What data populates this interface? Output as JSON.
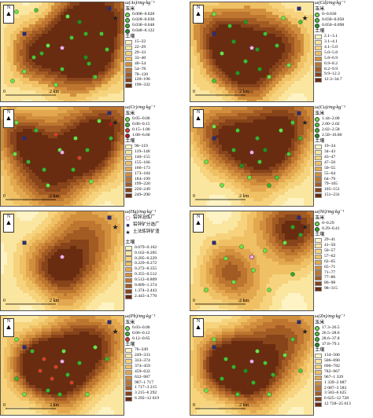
{
  "panels": [
    {
      "id": "as",
      "title": "ω(As)/mg·kg⁻¹",
      "section_pts": "玉米",
      "points": [
        {
          "label": "0.008~0.028",
          "color": "#6ee04b"
        },
        {
          "label": "0.028~0.038",
          "color": "#4cc63a"
        },
        {
          "label": "0.038~0.048",
          "color": "#39b12f"
        },
        {
          "label": "0.048~0.122",
          "color": "#1f8f22"
        }
      ],
      "section_soil": "土壤",
      "soil": [
        "15~22",
        "22~29",
        "29~33",
        "33~40",
        "40~54",
        "54~78",
        "78~120",
        "120~196",
        "196~332"
      ],
      "scale_zero": "0",
      "scale_label": "2 km"
    },
    {
      "id": "cd",
      "title": "ω(Cd)/mg·kg⁻¹",
      "section_pts": "玉米",
      "points": [
        {
          "label": "0~0.030",
          "color": "#6ee04b"
        },
        {
          "label": "0.030~0.050",
          "color": "#44c037"
        },
        {
          "label": "0.050~0.098",
          "color": "#249a25"
        }
      ],
      "section_soil": "土壤",
      "soil": [
        "2.1~3.1",
        "3.1~4.1",
        "4.1~5.0",
        "5.0~5.8",
        "5.8~6.9",
        "6.9~8.2",
        "8.2~9.9",
        "9.9~12.3",
        "12.3~34.7"
      ],
      "scale_zero": "0",
      "scale_label": "2 km"
    },
    {
      "id": "cr",
      "title": "ω(Cr)/mg·kg⁻¹",
      "section_pts": "玉米",
      "points": [
        {
          "label": "0.05~0.06",
          "color": "#6ee04b"
        },
        {
          "label": "0.06~0.15",
          "color": "#3bb531"
        },
        {
          "label": "0.15~1.00",
          "color": "#e23a2a"
        },
        {
          "label": "1.00~6.60",
          "color": "#c41414"
        }
      ],
      "section_soil": "土壤",
      "soil": [
        "90~119",
        "119~140",
        "140~155",
        "155~166",
        "166~173",
        "173~184",
        "184~199",
        "199~220",
        "220~249",
        "249~290"
      ],
      "scale_zero": "0",
      "scale_label": "2 km"
    },
    {
      "id": "cu",
      "title": "ω(Cu)/mg·kg⁻¹",
      "section_pts": "玉米",
      "points": [
        {
          "label": "1.44~2.00",
          "color": "#6ee04b"
        },
        {
          "label": "2.00~2.02",
          "color": "#4cc63a"
        },
        {
          "label": "2.02~2.58",
          "color": "#39b12f"
        },
        {
          "label": "2.58~16.00",
          "color": "#1f8f22"
        }
      ],
      "section_soil": "土壤",
      "soil": [
        "19~34",
        "34~43",
        "43~47",
        "47~50",
        "50~55",
        "55~64",
        "64~79",
        "79~105",
        "105~151",
        "151~231"
      ],
      "scale_zero": "0",
      "scale_label": "2 km"
    },
    {
      "id": "hg",
      "title": "ω(Hg)/mg·kg⁻¹",
      "section_pts": "",
      "points": [],
      "symbols": [
        {
          "label": "铅锌冶炼厂",
          "shape": "pentagon"
        },
        {
          "label": "铅锌矿分选厂",
          "shape": "square"
        },
        {
          "label": "土法炼锌矿渣",
          "shape": "star"
        }
      ],
      "section_soil": "土壤",
      "soil": [
        "0.079~0.162",
        "0.162~0.205",
        "0.205~0.229",
        "0.229~0.272",
        "0.272~0.355",
        "0.355~0.512",
        "0.512~0.809",
        "0.809~1.374",
        "1.374~2.443",
        "2.443~4.770"
      ],
      "scale_zero": "0",
      "scale_label": "2 km"
    },
    {
      "id": "ni",
      "title": "ω(Ni)/mg·kg⁻¹",
      "section_pts": "玉米",
      "points": [
        {
          "label": "0~0.29",
          "color": "#6ee04b"
        },
        {
          "label": "0.29~0.41",
          "color": "#2da52a"
        }
      ],
      "section_soil": "土壤",
      "soil": [
        "29~41",
        "41~50",
        "50~57",
        "57~62",
        "62~65",
        "65~71",
        "71~77",
        "77~86",
        "86~98",
        "98~115"
      ],
      "scale_zero": "0",
      "scale_label": "2 km"
    },
    {
      "id": "pb",
      "title": "ω(Pb)/mg·kg⁻¹",
      "section_pts": "玉米",
      "points": [
        {
          "label": "0.03~0.06",
          "color": "#6ee04b"
        },
        {
          "label": "0.06~0.12",
          "color": "#3bb531"
        },
        {
          "label": "0.12~0.65",
          "color": "#e23a2a"
        }
      ],
      "section_soil": "土壤",
      "soil": [
        "76~249",
        "249~333",
        "333~374",
        "374~459",
        "459~632",
        "632~987",
        "987~1 717",
        "1 717~3 215",
        "3 215~6 292",
        "6 292~12 619"
      ],
      "scale_zero": "0",
      "scale_label": "2 km"
    },
    {
      "id": "zn",
      "title": "ω(Zn)/mg·kg⁻¹",
      "section_pts": "玉米",
      "points": [
        {
          "label": "17.3~26.5",
          "color": "#6ee04b"
        },
        {
          "label": "26.5~28.6",
          "color": "#4cc63a"
        },
        {
          "label": "28.6~37.8",
          "color": "#39b12f"
        },
        {
          "label": "37.8~79.1",
          "color": "#1f8f22"
        }
      ],
      "section_soil": "土壤",
      "soil": [
        "134~506",
        "506~690",
        "690~782",
        "782~967",
        "967~1 339",
        "1 339~2 087",
        "2 087~3 583",
        "3 583~6 625",
        "6 625~12 728",
        "12 728~25 013"
      ],
      "scale_zero": "0",
      "scale_label": "2 km"
    }
  ],
  "north_label": "N",
  "soil_palette": [
    "#fdf3c4",
    "#fbe6a0",
    "#f6d37c",
    "#efc064",
    "#e3a84f",
    "#d18f3d",
    "#bd7530",
    "#a35b24",
    "#87431a",
    "#6a2c10"
  ]
}
